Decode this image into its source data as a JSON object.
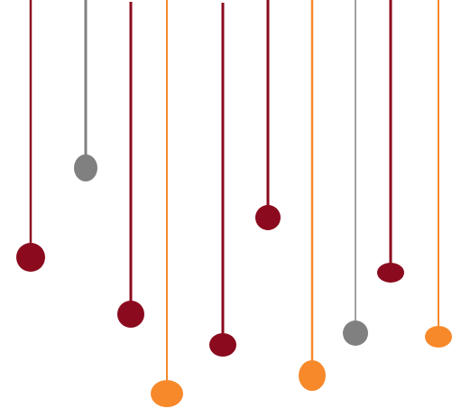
{
  "illustration": {
    "background": "#ffffff",
    "palette": {
      "dark_red": "#8b0a1e",
      "gray": "#808080",
      "orange": "#f7892b"
    },
    "pendants": [
      {
        "color": "dark_red"
      },
      {
        "color": "gray"
      },
      {
        "color": "dark_red"
      },
      {
        "color": "orange"
      },
      {
        "color": "dark_red"
      },
      {
        "color": "dark_red"
      },
      {
        "color": "orange"
      },
      {
        "color": "gray"
      },
      {
        "color": "dark_red"
      },
      {
        "color": "orange"
      }
    ]
  }
}
